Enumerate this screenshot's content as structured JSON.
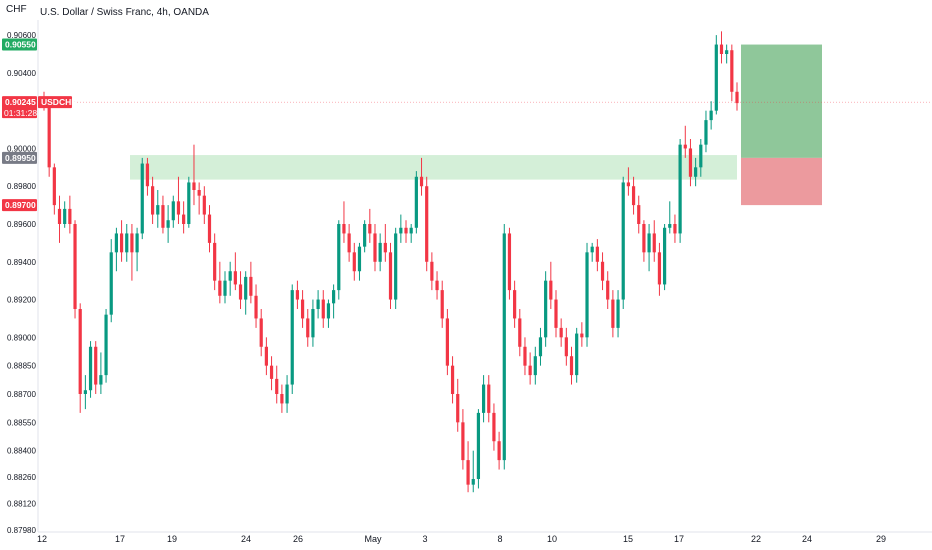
{
  "header": {
    "unit": "CHF",
    "title": "U.S. Dollar / Swiss Franc, 4h, OANDA"
  },
  "colors": {
    "up": "#089981",
    "down": "#f23645",
    "zone": "#d4efd8",
    "target": "#8fc79a",
    "stop": "#ec9a9e",
    "grey_badge": "#787b86"
  },
  "chart_data": {
    "type": "candlestick",
    "ylim": [
      0.8798,
      0.9068
    ],
    "y_ticks": [
      "0.90600",
      "0.90400",
      "0.90000",
      "0.89800",
      "0.89600",
      "0.89400",
      "0.89200",
      "0.89000",
      "0.88850",
      "0.88700",
      "0.88550",
      "0.88400",
      "0.88260",
      "0.88120",
      "0.87980"
    ],
    "x_ticks": [
      "12",
      "17",
      "19",
      "24",
      "26",
      "May",
      "3",
      "8",
      "10",
      "15",
      "17",
      "22",
      "24",
      "29"
    ],
    "supply_zone": {
      "from": 0.89835,
      "to": 0.89965
    },
    "position": {
      "target": 0.9055,
      "entry": 0.8995,
      "stop": 0.897
    },
    "price_labels": [
      {
        "value": "0.90550",
        "color": "green",
        "price": 0.9055
      },
      {
        "value": "0.90245",
        "symbol": "USDCHF",
        "countdown": "01:31:28",
        "color": "red",
        "price": 0.90245
      },
      {
        "value": "0.89950",
        "color": "grey",
        "price": 0.8995
      },
      {
        "value": "0.89700",
        "color": "red",
        "price": 0.897
      }
    ],
    "ohlc": [
      [
        0.9027,
        0.903,
        0.902,
        0.9024
      ],
      [
        0.9024,
        0.9026,
        0.8985,
        0.899
      ],
      [
        0.899,
        0.8992,
        0.8965,
        0.897
      ],
      [
        0.8968,
        0.8975,
        0.895,
        0.896
      ],
      [
        0.896,
        0.8972,
        0.8958,
        0.8968
      ],
      [
        0.8968,
        0.8975,
        0.8955,
        0.896
      ],
      [
        0.896,
        0.8962,
        0.891,
        0.8915
      ],
      [
        0.8915,
        0.8918,
        0.886,
        0.887
      ],
      [
        0.887,
        0.888,
        0.8862,
        0.8872
      ],
      [
        0.8872,
        0.8898,
        0.8868,
        0.8895
      ],
      [
        0.8895,
        0.8898,
        0.887,
        0.8875
      ],
      [
        0.8875,
        0.8892,
        0.887,
        0.888
      ],
      [
        0.888,
        0.8915,
        0.8876,
        0.8912
      ],
      [
        0.8912,
        0.8952,
        0.8908,
        0.8945
      ],
      [
        0.8945,
        0.8958,
        0.8935,
        0.8955
      ],
      [
        0.8955,
        0.8962,
        0.894,
        0.8945
      ],
      [
        0.8945,
        0.896,
        0.894,
        0.8955
      ],
      [
        0.8955,
        0.896,
        0.893,
        0.8945
      ],
      [
        0.8945,
        0.8958,
        0.8935,
        0.8955
      ],
      [
        0.8955,
        0.8995,
        0.8952,
        0.8992
      ],
      [
        0.8992,
        0.8995,
        0.8975,
        0.898
      ],
      [
        0.898,
        0.8985,
        0.896,
        0.8965
      ],
      [
        0.8965,
        0.8978,
        0.8958,
        0.897
      ],
      [
        0.897,
        0.8975,
        0.8955,
        0.8958
      ],
      [
        0.8958,
        0.897,
        0.895,
        0.8962
      ],
      [
        0.8962,
        0.8975,
        0.8958,
        0.8972
      ],
      [
        0.8972,
        0.8985,
        0.896,
        0.8965
      ],
      [
        0.8965,
        0.8972,
        0.8955,
        0.896
      ],
      [
        0.896,
        0.8985,
        0.8958,
        0.8982
      ],
      [
        0.8982,
        0.9002,
        0.897,
        0.8978
      ],
      [
        0.8978,
        0.8982,
        0.8965,
        0.8975
      ],
      [
        0.8975,
        0.898,
        0.896,
        0.8965
      ],
      [
        0.8965,
        0.897,
        0.8945,
        0.895
      ],
      [
        0.895,
        0.8955,
        0.8925,
        0.893
      ],
      [
        0.893,
        0.894,
        0.8918,
        0.8922
      ],
      [
        0.8922,
        0.8935,
        0.8918,
        0.893
      ],
      [
        0.893,
        0.894,
        0.8922,
        0.8935
      ],
      [
        0.8935,
        0.8945,
        0.8925,
        0.8928
      ],
      [
        0.8928,
        0.8935,
        0.8915,
        0.892
      ],
      [
        0.892,
        0.8935,
        0.8912,
        0.8932
      ],
      [
        0.8932,
        0.894,
        0.8918,
        0.8922
      ],
      [
        0.8922,
        0.8928,
        0.8905,
        0.891
      ],
      [
        0.891,
        0.8915,
        0.889,
        0.8895
      ],
      [
        0.8895,
        0.89,
        0.888,
        0.8885
      ],
      [
        0.8885,
        0.889,
        0.8872,
        0.8878
      ],
      [
        0.8878,
        0.8885,
        0.8865,
        0.887
      ],
      [
        0.887,
        0.8875,
        0.886,
        0.8865
      ],
      [
        0.8865,
        0.888,
        0.886,
        0.8875
      ],
      [
        0.8875,
        0.8928,
        0.887,
        0.8925
      ],
      [
        0.8925,
        0.893,
        0.8915,
        0.892
      ],
      [
        0.892,
        0.8925,
        0.8905,
        0.891
      ],
      [
        0.891,
        0.8915,
        0.8895,
        0.89
      ],
      [
        0.89,
        0.892,
        0.8895,
        0.8915
      ],
      [
        0.8915,
        0.8925,
        0.891,
        0.892
      ],
      [
        0.892,
        0.8925,
        0.8905,
        0.891
      ],
      [
        0.891,
        0.892,
        0.8905,
        0.8918
      ],
      [
        0.8918,
        0.8928,
        0.891,
        0.8925
      ],
      [
        0.8925,
        0.8962,
        0.892,
        0.896
      ],
      [
        0.896,
        0.8972,
        0.895,
        0.8955
      ],
      [
        0.8955,
        0.896,
        0.894,
        0.8945
      ],
      [
        0.8945,
        0.895,
        0.893,
        0.8935
      ],
      [
        0.8935,
        0.895,
        0.893,
        0.8948
      ],
      [
        0.8948,
        0.8962,
        0.8945,
        0.896
      ],
      [
        0.896,
        0.8968,
        0.895,
        0.8955
      ],
      [
        0.8955,
        0.896,
        0.8935,
        0.894
      ],
      [
        0.894,
        0.8955,
        0.8935,
        0.895
      ],
      [
        0.895,
        0.896,
        0.894,
        0.8945
      ],
      [
        0.8945,
        0.895,
        0.8915,
        0.892
      ],
      [
        0.892,
        0.8958,
        0.8915,
        0.8955
      ],
      [
        0.8955,
        0.8965,
        0.895,
        0.8958
      ],
      [
        0.8958,
        0.8962,
        0.895,
        0.8955
      ],
      [
        0.8955,
        0.896,
        0.895,
        0.8958
      ],
      [
        0.8958,
        0.8988,
        0.8955,
        0.8985
      ],
      [
        0.8985,
        0.8995,
        0.8975,
        0.898
      ],
      [
        0.898,
        0.8985,
        0.8935,
        0.894
      ],
      [
        0.894,
        0.8945,
        0.8925,
        0.893
      ],
      [
        0.893,
        0.8935,
        0.892,
        0.8925
      ],
      [
        0.8925,
        0.893,
        0.8905,
        0.891
      ],
      [
        0.891,
        0.8915,
        0.888,
        0.8885
      ],
      [
        0.8885,
        0.889,
        0.8865,
        0.887
      ],
      [
        0.887,
        0.8878,
        0.885,
        0.8855
      ],
      [
        0.8855,
        0.8862,
        0.883,
        0.8835
      ],
      [
        0.8835,
        0.8845,
        0.8818,
        0.8822
      ],
      [
        0.8822,
        0.884,
        0.8818,
        0.8825
      ],
      [
        0.8825,
        0.8862,
        0.882,
        0.886
      ],
      [
        0.886,
        0.888,
        0.8855,
        0.8875
      ],
      [
        0.8875,
        0.888,
        0.8855,
        0.886
      ],
      [
        0.886,
        0.8865,
        0.884,
        0.8845
      ],
      [
        0.8845,
        0.885,
        0.883,
        0.8835
      ],
      [
        0.8835,
        0.896,
        0.883,
        0.8955
      ],
      [
        0.8955,
        0.8958,
        0.892,
        0.8925
      ],
      [
        0.8925,
        0.893,
        0.8905,
        0.891
      ],
      [
        0.891,
        0.8915,
        0.889,
        0.8895
      ],
      [
        0.8895,
        0.89,
        0.888,
        0.8885
      ],
      [
        0.8885,
        0.8892,
        0.8875,
        0.888
      ],
      [
        0.888,
        0.8895,
        0.8875,
        0.889
      ],
      [
        0.889,
        0.8905,
        0.8885,
        0.89
      ],
      [
        0.89,
        0.8935,
        0.8895,
        0.893
      ],
      [
        0.893,
        0.894,
        0.8915,
        0.892
      ],
      [
        0.892,
        0.8925,
        0.89,
        0.8905
      ],
      [
        0.8905,
        0.891,
        0.8895,
        0.89
      ],
      [
        0.89,
        0.8905,
        0.8885,
        0.889
      ],
      [
        0.889,
        0.8895,
        0.8875,
        0.888
      ],
      [
        0.888,
        0.8905,
        0.8876,
        0.8902
      ],
      [
        0.8902,
        0.8908,
        0.8895,
        0.89
      ],
      [
        0.89,
        0.895,
        0.8895,
        0.8945
      ],
      [
        0.8945,
        0.895,
        0.894,
        0.8948
      ],
      [
        0.8948,
        0.8952,
        0.8935,
        0.894
      ],
      [
        0.894,
        0.8945,
        0.8925,
        0.893
      ],
      [
        0.893,
        0.8935,
        0.8915,
        0.892
      ],
      [
        0.892,
        0.8925,
        0.89,
        0.8905
      ],
      [
        0.8905,
        0.8925,
        0.89,
        0.892
      ],
      [
        0.892,
        0.8985,
        0.8915,
        0.8982
      ],
      [
        0.8982,
        0.899,
        0.8975,
        0.898
      ],
      [
        0.898,
        0.8985,
        0.8965,
        0.897
      ],
      [
        0.897,
        0.8975,
        0.8955,
        0.896
      ],
      [
        0.896,
        0.8962,
        0.894,
        0.8945
      ],
      [
        0.8945,
        0.896,
        0.8935,
        0.8955
      ],
      [
        0.8955,
        0.8962,
        0.894,
        0.8945
      ],
      [
        0.8945,
        0.895,
        0.8922,
        0.8928
      ],
      [
        0.8928,
        0.896,
        0.8925,
        0.8958
      ],
      [
        0.8958,
        0.8972,
        0.8955,
        0.896
      ],
      [
        0.896,
        0.8965,
        0.895,
        0.8955
      ],
      [
        0.8955,
        0.9005,
        0.895,
        0.9002
      ],
      [
        0.9002,
        0.9012,
        0.8995,
        0.9
      ],
      [
        0.9,
        0.9005,
        0.898,
        0.8985
      ],
      [
        0.8985,
        0.8995,
        0.898,
        0.899
      ],
      [
        0.899,
        0.9005,
        0.8985,
        0.9002
      ],
      [
        0.9002,
        0.902,
        0.8998,
        0.9015
      ],
      [
        0.9015,
        0.9025,
        0.901,
        0.902
      ],
      [
        0.902,
        0.906,
        0.9018,
        0.9055
      ],
      [
        0.9055,
        0.9062,
        0.9045,
        0.905
      ],
      [
        0.905,
        0.9055,
        0.9045,
        0.9052
      ],
      [
        0.9052,
        0.9055,
        0.9025,
        0.903
      ],
      [
        0.903,
        0.9035,
        0.902,
        0.9024
      ]
    ]
  }
}
